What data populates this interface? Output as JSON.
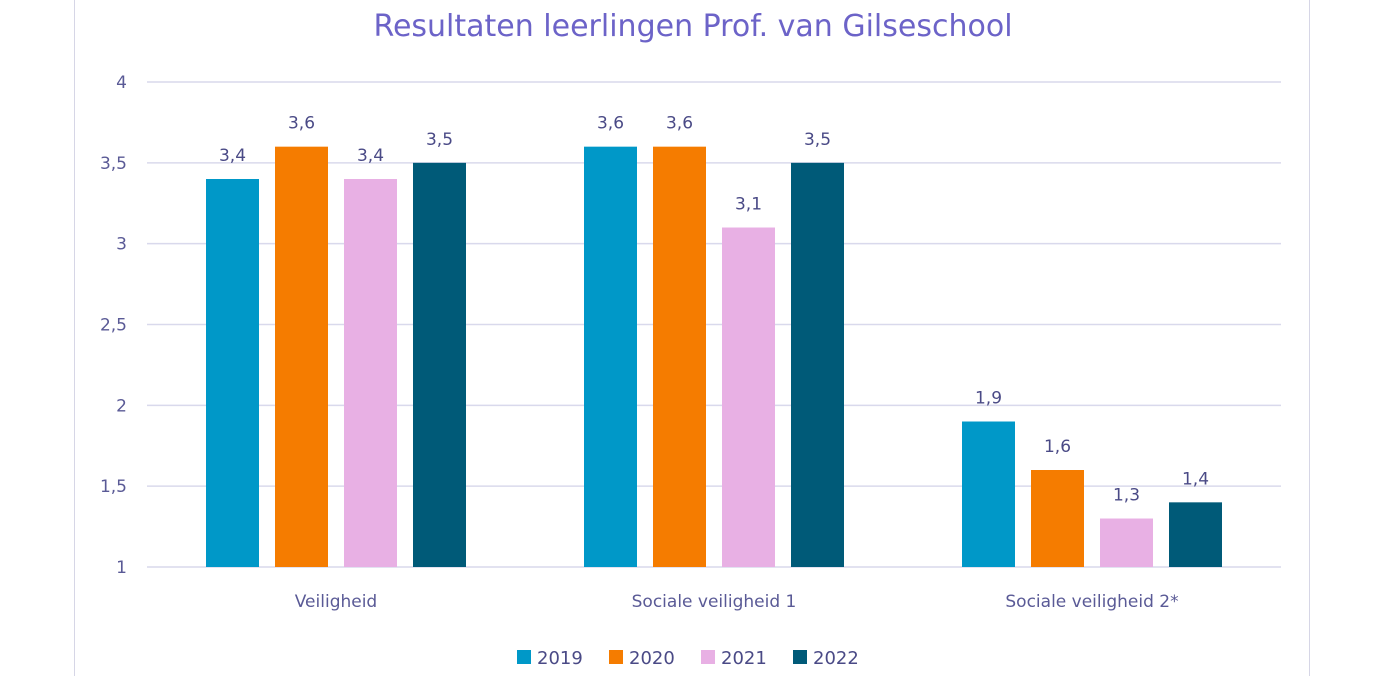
{
  "chart_data": {
    "type": "bar",
    "title": "Resultaten leerlingen Prof. van Gilseschool",
    "categories": [
      "Veiligheid",
      "Sociale veiligheid 1",
      "Sociale veiligheid 2*"
    ],
    "series": [
      {
        "name": "2019",
        "values": [
          3.4,
          3.6,
          1.9
        ],
        "labels": [
          "3,4",
          "3,6",
          "1,9"
        ],
        "color": "#0098c8"
      },
      {
        "name": "2020",
        "values": [
          3.6,
          3.6,
          1.6
        ],
        "labels": [
          "3,6",
          "3,6",
          "1,6"
        ],
        "color": "#f57c00"
      },
      {
        "name": "2021",
        "values": [
          3.4,
          3.1,
          1.3
        ],
        "labels": [
          "3,4",
          "3,1",
          "1,3"
        ],
        "color": "#e8b0e4"
      },
      {
        "name": "2022",
        "values": [
          3.5,
          3.5,
          1.4
        ],
        "labels": [
          "3,5",
          "3,5",
          "1,4"
        ],
        "color": "#005a78"
      }
    ],
    "yticks": [
      {
        "value": 1,
        "label": "1"
      },
      {
        "value": 1.5,
        "label": "1,5"
      },
      {
        "value": 2,
        "label": "2"
      },
      {
        "value": 2.5,
        "label": "2,5"
      },
      {
        "value": 3,
        "label": "3"
      },
      {
        "value": 3.5,
        "label": "3,5"
      },
      {
        "value": 4,
        "label": "4"
      }
    ],
    "ylim": [
      1,
      4
    ],
    "grid": true,
    "legend_position": "bottom"
  }
}
